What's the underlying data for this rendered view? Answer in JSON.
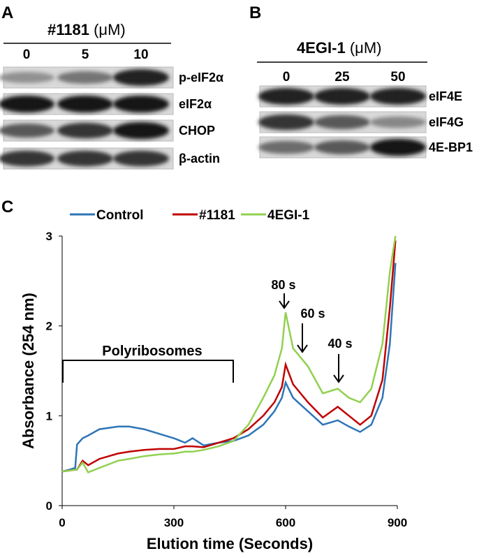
{
  "panel_a": {
    "label": "A",
    "title": "#1181",
    "unit": "(μM)",
    "concentrations": [
      "0",
      "5",
      "10"
    ],
    "rows": [
      "p-eIF2α",
      "eIF2α",
      "CHOP",
      "β-actin"
    ]
  },
  "panel_b": {
    "label": "B",
    "title": "4EGI-1",
    "unit": "(μM)",
    "concentrations": [
      "0",
      "25",
      "50"
    ],
    "rows": [
      "eIF4E",
      "eIF4G",
      "4E-BP1"
    ]
  },
  "chart_data": {
    "type": "line",
    "panel_label": "C",
    "x_label": "Elution time (Seconds)",
    "y_label": "Absorbance (254 nm)",
    "x": [
      0,
      20,
      35,
      40,
      55,
      70,
      100,
      150,
      180,
      220,
      260,
      300,
      330,
      350,
      380,
      420,
      460,
      500,
      540,
      570,
      590,
      600,
      620,
      660,
      700,
      740,
      770,
      800,
      830,
      860,
      880,
      895
    ],
    "series": [
      {
        "name": "Control",
        "color": "#2e75b6",
        "values": [
          0.38,
          0.4,
          0.42,
          0.68,
          0.75,
          0.78,
          0.85,
          0.88,
          0.88,
          0.85,
          0.8,
          0.75,
          0.7,
          0.75,
          0.67,
          0.7,
          0.72,
          0.78,
          0.9,
          1.05,
          1.2,
          1.37,
          1.2,
          1.05,
          0.9,
          0.95,
          0.88,
          0.82,
          0.9,
          1.2,
          1.8,
          2.7
        ]
      },
      {
        "name": "#1181",
        "color": "#c00000",
        "values": [
          0.38,
          0.39,
          0.4,
          0.4,
          0.5,
          0.45,
          0.52,
          0.58,
          0.6,
          0.62,
          0.63,
          0.63,
          0.66,
          0.66,
          0.65,
          0.7,
          0.75,
          0.85,
          1.0,
          1.15,
          1.32,
          1.57,
          1.35,
          1.15,
          0.98,
          1.1,
          1.0,
          0.9,
          1.0,
          1.4,
          2.2,
          2.95
        ]
      },
      {
        "name": "4EGI-1",
        "color": "#92d050",
        "values": [
          0.38,
          0.39,
          0.4,
          0.4,
          0.48,
          0.37,
          0.42,
          0.5,
          0.52,
          0.55,
          0.57,
          0.58,
          0.6,
          0.6,
          0.62,
          0.66,
          0.72,
          0.9,
          1.2,
          1.45,
          1.75,
          2.15,
          1.75,
          1.55,
          1.25,
          1.3,
          1.2,
          1.15,
          1.3,
          1.8,
          2.6,
          3.0
        ]
      }
    ],
    "xlim": [
      0,
      900
    ],
    "ylim": [
      0,
      3
    ],
    "xticks": [
      0,
      300,
      600,
      900
    ],
    "yticks": [
      0,
      1,
      2,
      3
    ],
    "annotations": [
      "80 s",
      "60 s",
      "40 s",
      "Polyribosomes"
    ]
  }
}
